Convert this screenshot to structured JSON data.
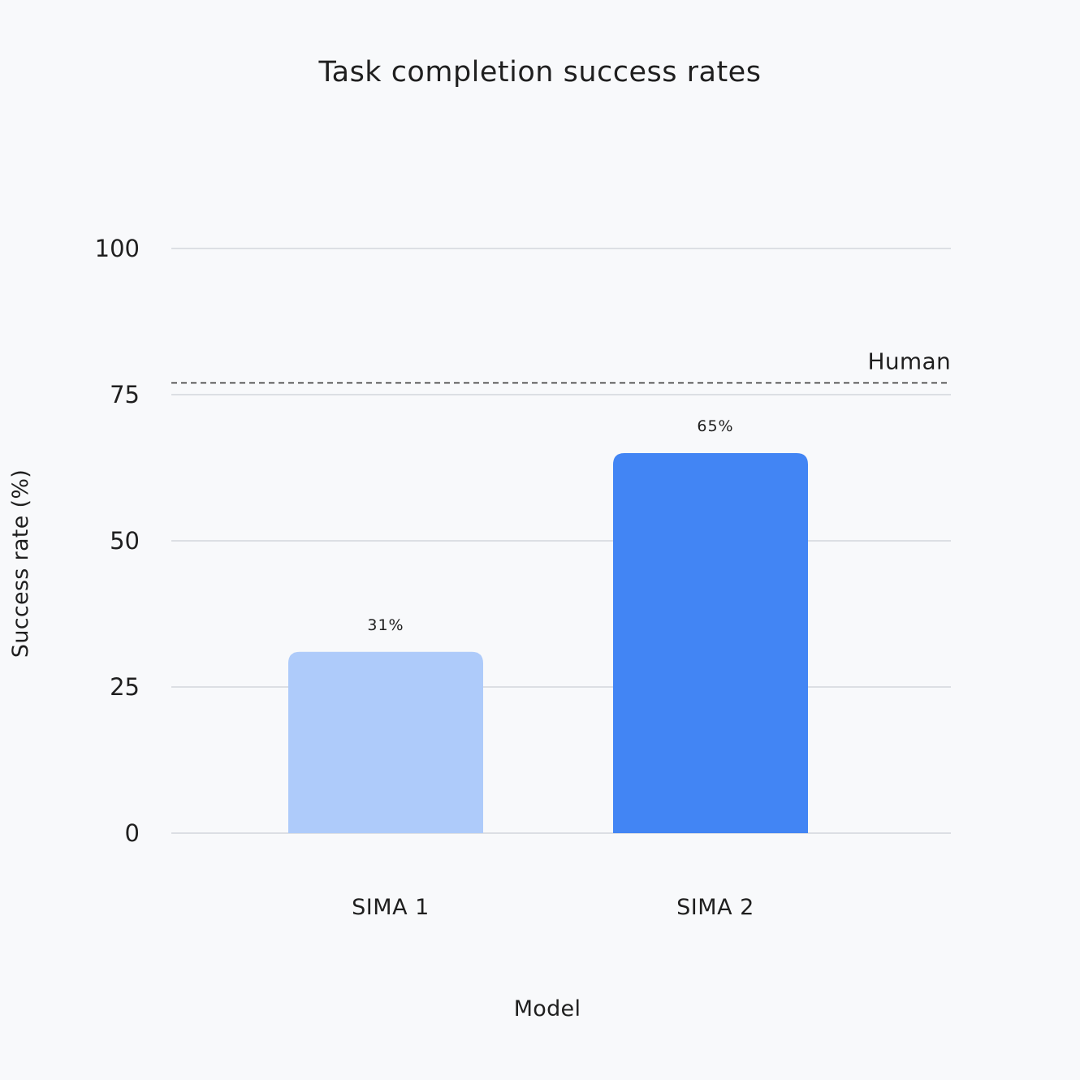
{
  "chart_data": {
    "type": "bar",
    "title": "Task completion success rates",
    "xlabel": "Model",
    "ylabel": "Success rate (%)",
    "categories": [
      "SIMA 1",
      "SIMA 2"
    ],
    "values": [
      31,
      65
    ],
    "data_labels": [
      "31%",
      "65%"
    ],
    "bar_colors": [
      "#aecbfa",
      "#4285f4"
    ],
    "ylim": [
      0,
      100
    ],
    "yticks": [
      0,
      25,
      50,
      75,
      100
    ],
    "ytick_labels": [
      "0",
      "25",
      "50",
      "75",
      "100"
    ],
    "grid": true,
    "reference_line": {
      "label": "Human",
      "value": 77,
      "style": "dashed"
    }
  }
}
